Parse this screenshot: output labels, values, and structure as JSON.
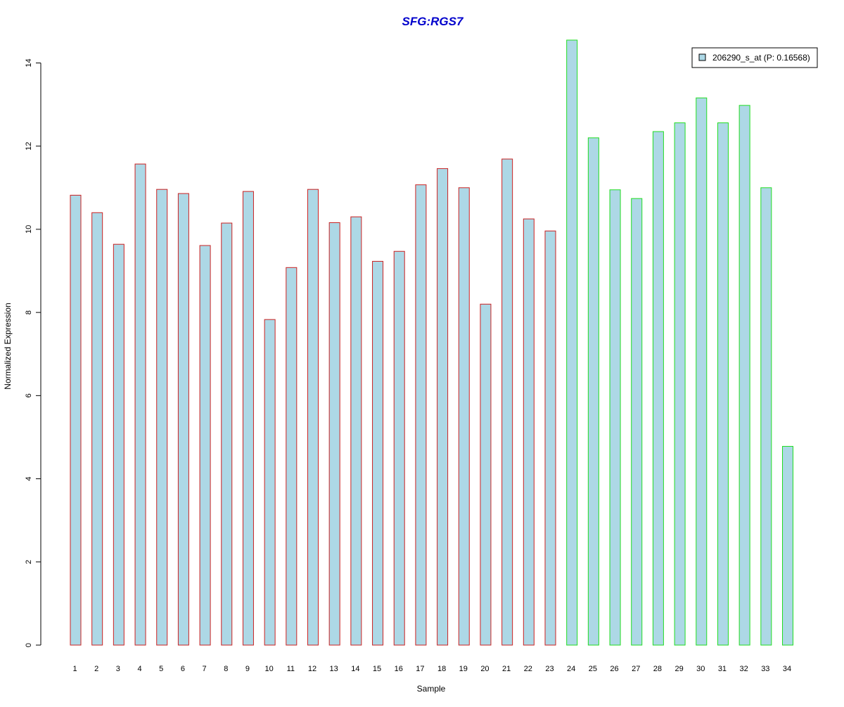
{
  "chart_data": {
    "type": "bar",
    "title": "SFG:RGS7",
    "xlabel": "Sample",
    "ylabel": "Normalized Expression",
    "ylim": [
      0,
      14.6
    ],
    "yticks": [
      0,
      2,
      4,
      6,
      8,
      10,
      12,
      14
    ],
    "grid": false,
    "legend_position": "top-right",
    "categories": [
      "1",
      "2",
      "3",
      "4",
      "5",
      "6",
      "7",
      "8",
      "9",
      "10",
      "11",
      "12",
      "13",
      "14",
      "15",
      "16",
      "17",
      "18",
      "19",
      "20",
      "21",
      "22",
      "23",
      "24",
      "25",
      "26",
      "27",
      "28",
      "29",
      "30",
      "31",
      "32",
      "33",
      "34"
    ],
    "series": [
      {
        "name": "206290_s_at (P: 0.16568)",
        "values": [
          10.82,
          10.4,
          9.64,
          11.57,
          10.96,
          10.86,
          9.61,
          10.15,
          10.91,
          7.83,
          9.08,
          10.96,
          10.16,
          10.3,
          9.23,
          9.47,
          11.07,
          11.46,
          11.0,
          8.2,
          11.69,
          10.25,
          9.96,
          14.55,
          12.2,
          10.95,
          10.74,
          12.35,
          12.56,
          13.16,
          12.56,
          12.98,
          11.0,
          4.78
        ]
      }
    ],
    "group_edges": [
      "#cc2222",
      "#cc2222",
      "#cc2222",
      "#cc2222",
      "#cc2222",
      "#cc2222",
      "#cc2222",
      "#cc2222",
      "#cc2222",
      "#cc2222",
      "#cc2222",
      "#cc2222",
      "#cc2222",
      "#cc2222",
      "#cc2222",
      "#cc2222",
      "#cc2222",
      "#cc2222",
      "#cc2222",
      "#cc2222",
      "#cc2222",
      "#cc2222",
      "#cc2222",
      "#22dd22",
      "#22dd22",
      "#22dd22",
      "#22dd22",
      "#22dd22",
      "#22dd22",
      "#22dd22",
      "#22dd22",
      "#22dd22",
      "#22dd22",
      "#22dd22"
    ],
    "colors": {
      "bar_fill": "#add8e6",
      "title": "#0000cc",
      "axis": "#000000"
    }
  }
}
